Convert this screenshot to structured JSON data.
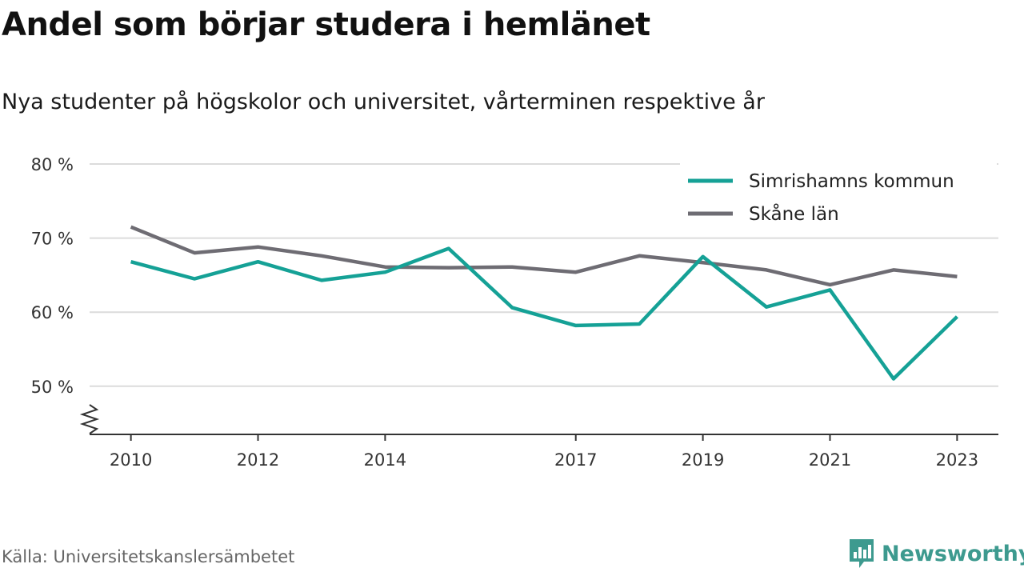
{
  "title": "Andel som börjar studera i hemlänet",
  "subtitle": "Nya studenter på högskolor och universitet, vårterminen respektive år",
  "source": "Källa: Universitetskanslersämbetet",
  "brand": {
    "name": "Newsworthy",
    "icon": "newsworthy-logo-icon",
    "color": "#3d9a8f"
  },
  "chart_data": {
    "type": "line",
    "title": "Andel som börjar studera i hemlänet",
    "subtitle": "Nya studenter på högskolor och universitet, vårterminen respektive år",
    "x": [
      2010,
      2011,
      2012,
      2013,
      2014,
      2015,
      2016,
      2017,
      2018,
      2019,
      2020,
      2021,
      2022,
      2023
    ],
    "x_ticks": [
      2010,
      2012,
      2014,
      2017,
      2019,
      2021,
      2023
    ],
    "x_tick_labels": [
      "2010",
      "2012",
      "2014",
      "2017",
      "2019",
      "2021",
      "2023"
    ],
    "y_ticks": [
      50,
      60,
      70,
      80
    ],
    "y_tick_labels": [
      "50 %",
      "60 %",
      "70 %",
      "80 %"
    ],
    "ylim": [
      43.5,
      80
    ],
    "y_axis_broken": true,
    "grid": "horizontal",
    "legend_position": "top-right",
    "series": [
      {
        "name": "Simrishamns kommun",
        "color": "#15a196",
        "values": [
          66.8,
          64.5,
          66.8,
          64.3,
          65.4,
          68.6,
          60.6,
          58.2,
          58.4,
          67.5,
          60.7,
          63.0,
          51.0,
          59.4
        ]
      },
      {
        "name": "Skåne län",
        "color": "#6e6c73",
        "values": [
          71.5,
          68.0,
          68.8,
          67.6,
          66.1,
          66.0,
          66.1,
          65.4,
          67.6,
          66.7,
          65.7,
          63.7,
          65.7,
          64.8
        ]
      }
    ]
  }
}
